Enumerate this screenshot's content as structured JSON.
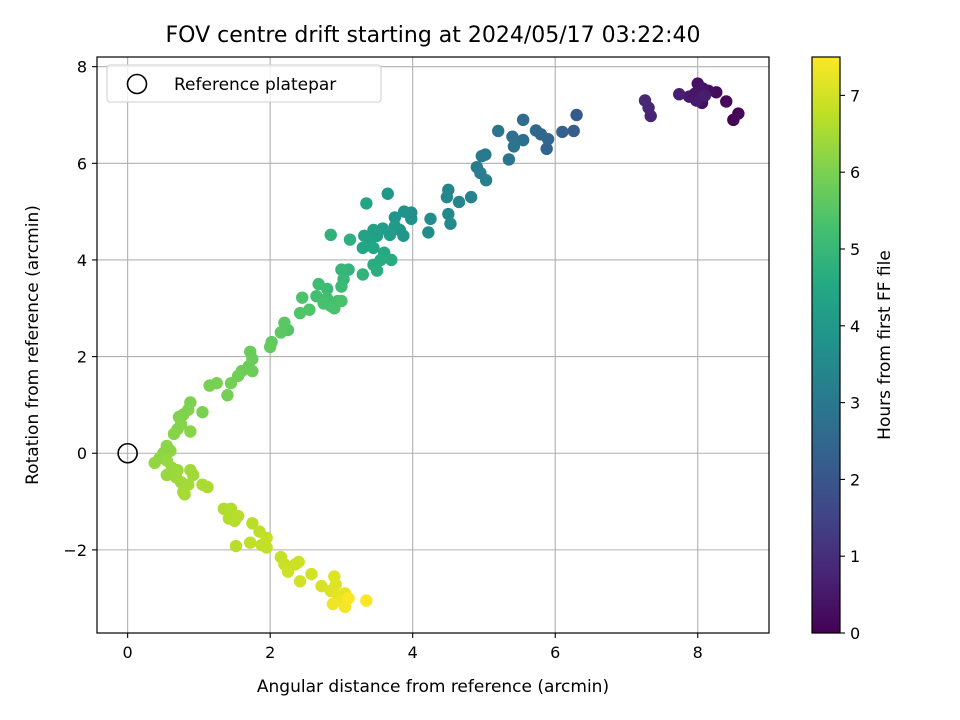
{
  "chart_data": {
    "type": "scatter",
    "title": "FOV centre drift starting at 2024/05/17 03:22:40",
    "xlabel": "Angular distance from reference (arcmin)",
    "ylabel": "Rotation from reference (arcmin)",
    "xlim": [
      -0.43,
      9.0
    ],
    "ylim": [
      -3.72,
      8.2
    ],
    "xticks": [
      0,
      2,
      4,
      6,
      8
    ],
    "yticks": [
      -2,
      0,
      2,
      4,
      6,
      8
    ],
    "xtick_labels": [
      "0",
      "2",
      "4",
      "6",
      "8"
    ],
    "ytick_labels": [
      "−2",
      "0",
      "2",
      "4",
      "6",
      "8"
    ],
    "grid": true,
    "legend": {
      "position": "upper-left",
      "entries": [
        "Reference platepar"
      ]
    },
    "reference_point": {
      "x": 0,
      "y": 0,
      "marker": "open-circle"
    },
    "colorbar": {
      "label": "Hours from first FF file",
      "min": 0,
      "max": 7.5,
      "ticks": [
        0,
        1,
        2,
        3,
        4,
        5,
        6,
        7
      ],
      "tick_labels": [
        "0",
        "1",
        "2",
        "3",
        "4",
        "5",
        "6",
        "7"
      ],
      "colormap": "viridis"
    },
    "points": [
      {
        "x": 8.5,
        "y": 6.9,
        "t": 0.05
      },
      {
        "x": 8.57,
        "y": 7.03,
        "t": 0.1
      },
      {
        "x": 8.4,
        "y": 7.28,
        "t": 0.15
      },
      {
        "x": 8.26,
        "y": 7.47,
        "t": 0.2
      },
      {
        "x": 8.15,
        "y": 7.5,
        "t": 0.25
      },
      {
        "x": 8.06,
        "y": 7.25,
        "t": 0.3
      },
      {
        "x": 8.0,
        "y": 7.65,
        "t": 0.35
      },
      {
        "x": 8.07,
        "y": 7.55,
        "t": 0.4
      },
      {
        "x": 7.96,
        "y": 7.44,
        "t": 0.45
      },
      {
        "x": 7.88,
        "y": 7.38,
        "t": 0.5
      },
      {
        "x": 7.98,
        "y": 7.3,
        "t": 0.55
      },
      {
        "x": 8.1,
        "y": 7.4,
        "t": 0.6
      },
      {
        "x": 7.74,
        "y": 7.43,
        "t": 0.65
      },
      {
        "x": 7.34,
        "y": 6.98,
        "t": 0.75
      },
      {
        "x": 7.31,
        "y": 7.15,
        "t": 0.8
      },
      {
        "x": 7.26,
        "y": 7.3,
        "t": 0.85
      },
      {
        "x": 6.3,
        "y": 7.0,
        "t": 2.1
      },
      {
        "x": 6.26,
        "y": 6.67,
        "t": 2.2
      },
      {
        "x": 6.1,
        "y": 6.65,
        "t": 2.3
      },
      {
        "x": 5.88,
        "y": 6.3,
        "t": 2.4
      },
      {
        "x": 5.9,
        "y": 6.5,
        "t": 2.45
      },
      {
        "x": 5.8,
        "y": 6.6,
        "t": 2.5
      },
      {
        "x": 5.73,
        "y": 6.68,
        "t": 2.55
      },
      {
        "x": 5.55,
        "y": 6.9,
        "t": 2.6
      },
      {
        "x": 5.55,
        "y": 6.48,
        "t": 2.7
      },
      {
        "x": 5.4,
        "y": 6.55,
        "t": 2.8
      },
      {
        "x": 5.42,
        "y": 6.35,
        "t": 2.85
      },
      {
        "x": 5.2,
        "y": 6.67,
        "t": 2.9
      },
      {
        "x": 5.35,
        "y": 6.08,
        "t": 2.95
      },
      {
        "x": 5.02,
        "y": 6.18,
        "t": 3.0
      },
      {
        "x": 4.97,
        "y": 6.15,
        "t": 3.05
      },
      {
        "x": 4.9,
        "y": 5.92,
        "t": 3.1
      },
      {
        "x": 4.95,
        "y": 5.8,
        "t": 3.15
      },
      {
        "x": 5.03,
        "y": 5.65,
        "t": 3.2
      },
      {
        "x": 4.82,
        "y": 5.3,
        "t": 3.3
      },
      {
        "x": 4.65,
        "y": 5.2,
        "t": 3.35
      },
      {
        "x": 4.5,
        "y": 5.45,
        "t": 3.4
      },
      {
        "x": 4.48,
        "y": 5.3,
        "t": 3.45
      },
      {
        "x": 4.5,
        "y": 4.95,
        "t": 3.5
      },
      {
        "x": 4.53,
        "y": 4.75,
        "t": 3.55
      },
      {
        "x": 4.25,
        "y": 4.85,
        "t": 3.6
      },
      {
        "x": 4.22,
        "y": 4.57,
        "t": 3.65
      },
      {
        "x": 3.98,
        "y": 4.98,
        "t": 3.7
      },
      {
        "x": 3.98,
        "y": 4.85,
        "t": 3.75
      },
      {
        "x": 3.88,
        "y": 5.0,
        "t": 3.8
      },
      {
        "x": 3.75,
        "y": 4.88,
        "t": 3.85
      },
      {
        "x": 3.82,
        "y": 4.62,
        "t": 3.9
      },
      {
        "x": 3.87,
        "y": 4.5,
        "t": 3.95
      },
      {
        "x": 3.65,
        "y": 5.37,
        "t": 4.0
      },
      {
        "x": 3.75,
        "y": 4.7,
        "t": 4.05
      },
      {
        "x": 3.68,
        "y": 4.52,
        "t": 4.1
      },
      {
        "x": 3.58,
        "y": 4.65,
        "t": 4.15
      },
      {
        "x": 3.5,
        "y": 4.5,
        "t": 4.2
      },
      {
        "x": 3.45,
        "y": 4.62,
        "t": 4.25
      },
      {
        "x": 3.4,
        "y": 4.4,
        "t": 4.3
      },
      {
        "x": 3.32,
        "y": 4.5,
        "t": 4.35
      },
      {
        "x": 3.35,
        "y": 5.17,
        "t": 4.4
      },
      {
        "x": 3.3,
        "y": 4.25,
        "t": 4.45
      },
      {
        "x": 3.45,
        "y": 4.25,
        "t": 4.5
      },
      {
        "x": 3.6,
        "y": 4.15,
        "t": 4.55
      },
      {
        "x": 3.7,
        "y": 4.0,
        "t": 4.6
      },
      {
        "x": 3.55,
        "y": 4.0,
        "t": 4.62
      },
      {
        "x": 3.45,
        "y": 3.9,
        "t": 4.65
      },
      {
        "x": 3.5,
        "y": 3.78,
        "t": 4.7
      },
      {
        "x": 3.12,
        "y": 4.42,
        "t": 4.75
      },
      {
        "x": 2.85,
        "y": 4.52,
        "t": 4.8
      },
      {
        "x": 3.3,
        "y": 3.7,
        "t": 4.85
      },
      {
        "x": 3.1,
        "y": 3.8,
        "t": 4.9
      },
      {
        "x": 3.0,
        "y": 3.8,
        "t": 4.95
      },
      {
        "x": 3.03,
        "y": 3.6,
        "t": 5.0
      },
      {
        "x": 3.0,
        "y": 3.45,
        "t": 5.05
      },
      {
        "x": 2.8,
        "y": 3.4,
        "t": 5.1
      },
      {
        "x": 2.68,
        "y": 3.5,
        "t": 5.15
      },
      {
        "x": 2.65,
        "y": 3.25,
        "t": 5.2
      },
      {
        "x": 2.8,
        "y": 3.2,
        "t": 5.22
      },
      {
        "x": 2.85,
        "y": 3.05,
        "t": 5.25
      },
      {
        "x": 2.95,
        "y": 3.15,
        "t": 5.27
      },
      {
        "x": 2.75,
        "y": 3.1,
        "t": 5.3
      },
      {
        "x": 2.9,
        "y": 3.0,
        "t": 5.32
      },
      {
        "x": 3.0,
        "y": 3.15,
        "t": 5.34
      },
      {
        "x": 2.45,
        "y": 3.22,
        "t": 5.36
      },
      {
        "x": 2.55,
        "y": 2.97,
        "t": 5.4
      },
      {
        "x": 2.42,
        "y": 2.9,
        "t": 5.45
      },
      {
        "x": 2.25,
        "y": 2.55,
        "t": 5.5
      },
      {
        "x": 2.2,
        "y": 2.7,
        "t": 5.55
      },
      {
        "x": 2.15,
        "y": 2.5,
        "t": 5.6
      },
      {
        "x": 2.02,
        "y": 2.3,
        "t": 5.65
      },
      {
        "x": 2.0,
        "y": 2.2,
        "t": 5.7
      },
      {
        "x": 1.72,
        "y": 2.1,
        "t": 5.75
      },
      {
        "x": 1.75,
        "y": 1.95,
        "t": 5.78
      },
      {
        "x": 1.7,
        "y": 1.8,
        "t": 5.8
      },
      {
        "x": 1.75,
        "y": 1.7,
        "t": 5.82
      },
      {
        "x": 1.6,
        "y": 1.7,
        "t": 5.85
      },
      {
        "x": 1.55,
        "y": 1.6,
        "t": 5.88
      },
      {
        "x": 1.45,
        "y": 1.45,
        "t": 5.9
      },
      {
        "x": 1.4,
        "y": 1.2,
        "t": 5.93
      },
      {
        "x": 1.25,
        "y": 1.45,
        "t": 5.95
      },
      {
        "x": 1.15,
        "y": 1.4,
        "t": 5.97
      },
      {
        "x": 1.05,
        "y": 0.85,
        "t": 6.0
      },
      {
        "x": 0.88,
        "y": 1.05,
        "t": 6.02
      },
      {
        "x": 0.85,
        "y": 0.9,
        "t": 6.04
      },
      {
        "x": 0.78,
        "y": 0.8,
        "t": 6.06
      },
      {
        "x": 0.72,
        "y": 0.75,
        "t": 6.08
      },
      {
        "x": 0.75,
        "y": 0.6,
        "t": 6.1
      },
      {
        "x": 0.7,
        "y": 0.5,
        "t": 6.12
      },
      {
        "x": 0.65,
        "y": 0.4,
        "t": 6.14
      },
      {
        "x": 0.88,
        "y": 0.45,
        "t": 6.16
      },
      {
        "x": 0.55,
        "y": 0.15,
        "t": 6.2
      },
      {
        "x": 0.5,
        "y": 0.0,
        "t": 6.22
      },
      {
        "x": 0.6,
        "y": 0.05,
        "t": 6.24
      },
      {
        "x": 0.45,
        "y": -0.1,
        "t": 6.26
      },
      {
        "x": 0.38,
        "y": -0.2,
        "t": 6.28
      },
      {
        "x": 0.55,
        "y": -0.15,
        "t": 6.3
      },
      {
        "x": 0.62,
        "y": -0.3,
        "t": 6.32
      },
      {
        "x": 0.55,
        "y": -0.45,
        "t": 6.34
      },
      {
        "x": 0.7,
        "y": -0.35,
        "t": 6.36
      },
      {
        "x": 0.68,
        "y": -0.5,
        "t": 6.38
      },
      {
        "x": 0.75,
        "y": -0.6,
        "t": 6.4
      },
      {
        "x": 0.88,
        "y": -0.35,
        "t": 6.42
      },
      {
        "x": 0.92,
        "y": -0.45,
        "t": 6.44
      },
      {
        "x": 0.85,
        "y": -0.65,
        "t": 6.46
      },
      {
        "x": 0.78,
        "y": -0.8,
        "t": 6.48
      },
      {
        "x": 0.8,
        "y": -0.85,
        "t": 6.5
      },
      {
        "x": 1.05,
        "y": -0.65,
        "t": 6.52
      },
      {
        "x": 1.12,
        "y": -0.7,
        "t": 6.55
      },
      {
        "x": 1.35,
        "y": -1.15,
        "t": 6.6
      },
      {
        "x": 1.45,
        "y": -1.15,
        "t": 6.62
      },
      {
        "x": 1.42,
        "y": -1.35,
        "t": 6.64
      },
      {
        "x": 1.5,
        "y": -1.4,
        "t": 6.66
      },
      {
        "x": 1.55,
        "y": -1.3,
        "t": 6.68
      },
      {
        "x": 1.52,
        "y": -1.92,
        "t": 6.7
      },
      {
        "x": 1.75,
        "y": -1.45,
        "t": 6.72
      },
      {
        "x": 1.85,
        "y": -1.62,
        "t": 6.74
      },
      {
        "x": 1.72,
        "y": -1.85,
        "t": 6.76
      },
      {
        "x": 1.88,
        "y": -1.9,
        "t": 6.78
      },
      {
        "x": 1.95,
        "y": -1.95,
        "t": 6.8
      },
      {
        "x": 1.95,
        "y": -1.75,
        "t": 6.82
      },
      {
        "x": 2.15,
        "y": -2.15,
        "t": 6.85
      },
      {
        "x": 2.2,
        "y": -2.3,
        "t": 6.88
      },
      {
        "x": 2.35,
        "y": -2.3,
        "t": 6.9
      },
      {
        "x": 2.4,
        "y": -2.25,
        "t": 6.92
      },
      {
        "x": 2.25,
        "y": -2.45,
        "t": 6.95
      },
      {
        "x": 2.42,
        "y": -2.65,
        "t": 6.98
      },
      {
        "x": 2.58,
        "y": -2.5,
        "t": 7.0
      },
      {
        "x": 2.72,
        "y": -2.75,
        "t": 7.05
      },
      {
        "x": 2.85,
        "y": -2.85,
        "t": 7.1
      },
      {
        "x": 2.9,
        "y": -2.55,
        "t": 7.12
      },
      {
        "x": 2.92,
        "y": -2.72,
        "t": 7.15
      },
      {
        "x": 2.95,
        "y": -2.95,
        "t": 7.2
      },
      {
        "x": 3.05,
        "y": -2.9,
        "t": 7.25
      },
      {
        "x": 3.0,
        "y": -3.05,
        "t": 7.3
      },
      {
        "x": 2.88,
        "y": -3.12,
        "t": 7.35
      },
      {
        "x": 3.05,
        "y": -3.18,
        "t": 7.4
      },
      {
        "x": 3.35,
        "y": -3.05,
        "t": 7.45
      },
      {
        "x": 3.1,
        "y": -3.0,
        "t": 7.48
      }
    ]
  }
}
